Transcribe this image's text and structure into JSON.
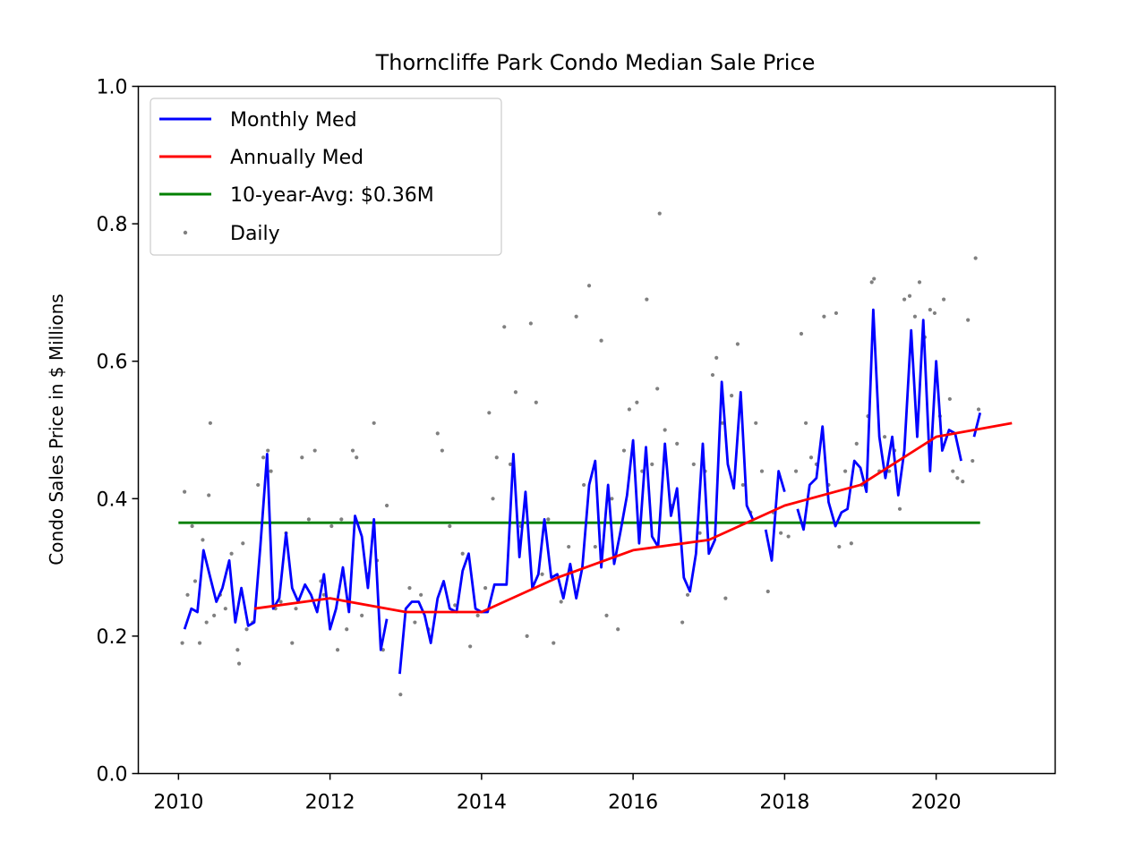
{
  "chart_data": {
    "type": "line",
    "title": "Thorncliffe Park Condo Median Sale Price",
    "xlabel": "",
    "ylabel": "Condo Sales Price in $ Millions",
    "xlim": [
      2009.47,
      2021.57
    ],
    "ylim": [
      0.0,
      1.0
    ],
    "xticks": [
      2010,
      2012,
      2014,
      2016,
      2018,
      2020
    ],
    "yticks": [
      0.0,
      0.2,
      0.4,
      0.6,
      0.8,
      1.0
    ],
    "xtick_labels": [
      "2010",
      "2012",
      "2014",
      "2016",
      "2018",
      "2020"
    ],
    "ytick_labels": [
      "0.0",
      "0.2",
      "0.4",
      "0.6",
      "0.8",
      "1.0"
    ],
    "grid": false,
    "legend_position": "top-left",
    "colors": {
      "monthly": "#0000ff",
      "annual": "#ff0000",
      "avg": "#008000",
      "daily": "#808080"
    },
    "series": [
      {
        "name": "Monthly Med",
        "kind": "line",
        "segments": [
          {
            "x": [
              2010.08,
              2010.17,
              2010.25,
              2010.33,
              2010.42,
              2010.5,
              2010.58,
              2010.67,
              2010.75,
              2010.83,
              2010.92,
              2011.0,
              2011.08,
              2011.17,
              2011.25,
              2011.33,
              2011.42,
              2011.5,
              2011.58,
              2011.67,
              2011.75,
              2011.83,
              2011.92,
              2012.0,
              2012.08,
              2012.17,
              2012.25,
              2012.33,
              2012.42,
              2012.5,
              2012.58,
              2012.67,
              2012.75
            ],
            "y": [
              0.21,
              0.24,
              0.235,
              0.325,
              0.285,
              0.25,
              0.27,
              0.31,
              0.22,
              0.27,
              0.215,
              0.22,
              0.33,
              0.465,
              0.24,
              0.255,
              0.35,
              0.27,
              0.25,
              0.275,
              0.26,
              0.235,
              0.29,
              0.21,
              0.24,
              0.3,
              0.235,
              0.375,
              0.345,
              0.27,
              0.37,
              0.18,
              0.225
            ]
          },
          {
            "x": [
              2012.92,
              2013.0,
              2013.08,
              2013.17,
              2013.25,
              2013.33,
              2013.42,
              2013.5,
              2013.58,
              2013.67,
              2013.75,
              2013.83,
              2013.92,
              2014.0,
              2014.08,
              2014.17,
              2014.25,
              2014.33,
              2014.42,
              2014.5,
              2014.58,
              2014.67,
              2014.75,
              2014.83,
              2014.92,
              2015.0,
              2015.08,
              2015.17,
              2015.25,
              2015.33,
              2015.42,
              2015.5,
              2015.58,
              2015.67,
              2015.75,
              2015.83,
              2015.92,
              2016.0,
              2016.08,
              2016.17,
              2016.25,
              2016.33,
              2016.42,
              2016.5,
              2016.58,
              2016.67,
              2016.75,
              2016.83,
              2016.92,
              2017.0,
              2017.08,
              2017.17,
              2017.25,
              2017.33,
              2017.42,
              2017.5,
              2017.58
            ],
            "y": [
              0.145,
              0.24,
              0.25,
              0.25,
              0.23,
              0.19,
              0.255,
              0.28,
              0.24,
              0.235,
              0.295,
              0.32,
              0.24,
              0.235,
              0.235,
              0.275,
              0.275,
              0.275,
              0.465,
              0.315,
              0.41,
              0.27,
              0.29,
              0.37,
              0.285,
              0.29,
              0.255,
              0.305,
              0.255,
              0.3,
              0.42,
              0.455,
              0.3,
              0.42,
              0.305,
              0.35,
              0.405,
              0.485,
              0.335,
              0.475,
              0.345,
              0.33,
              0.48,
              0.375,
              0.415,
              0.285,
              0.265,
              0.32,
              0.48,
              0.32,
              0.34,
              0.57,
              0.45,
              0.415,
              0.555,
              0.39,
              0.37
            ]
          },
          {
            "x": [
              2017.75,
              2017.83,
              2017.92,
              2018.0
            ],
            "y": [
              0.355,
              0.31,
              0.44,
              0.41
            ]
          },
          {
            "x": [
              2018.17,
              2018.25,
              2018.33,
              2018.42,
              2018.5,
              2018.58,
              2018.67,
              2018.75,
              2018.83,
              2018.92,
              2019.0,
              2019.08,
              2019.17,
              2019.25,
              2019.33,
              2019.42,
              2019.5,
              2019.58,
              2019.67,
              2019.75,
              2019.83,
              2019.92,
              2020.0,
              2020.08,
              2020.17,
              2020.25,
              2020.33
            ],
            "y": [
              0.385,
              0.355,
              0.42,
              0.43,
              0.505,
              0.395,
              0.36,
              0.38,
              0.385,
              0.455,
              0.445,
              0.41,
              0.675,
              0.49,
              0.43,
              0.49,
              0.405,
              0.47,
              0.645,
              0.49,
              0.66,
              0.44,
              0.6,
              0.47,
              0.5,
              0.495,
              0.455
            ]
          },
          {
            "x": [
              2020.5,
              2020.58
            ],
            "y": [
              0.49,
              0.525
            ]
          }
        ]
      },
      {
        "name": "Annually Med",
        "kind": "line",
        "x": [
          2011.0,
          2012.0,
          2013.0,
          2014.0,
          2015.0,
          2016.0,
          2017.0,
          2018.0,
          2019.0,
          2020.0,
          2021.0
        ],
        "y": [
          0.24,
          0.255,
          0.235,
          0.235,
          0.285,
          0.325,
          0.34,
          0.39,
          0.42,
          0.49,
          0.51
        ]
      },
      {
        "name": "10-year-Avg: $0.36M",
        "kind": "hline",
        "x": [
          2010.0,
          2020.58
        ],
        "y": [
          0.365,
          0.365
        ]
      },
      {
        "name": "Daily",
        "kind": "scatter",
        "points": [
          [
            2010.05,
            0.19
          ],
          [
            2010.08,
            0.41
          ],
          [
            2010.12,
            0.26
          ],
          [
            2010.18,
            0.36
          ],
          [
            2010.22,
            0.28
          ],
          [
            2010.28,
            0.19
          ],
          [
            2010.32,
            0.34
          ],
          [
            2010.37,
            0.22
          ],
          [
            2010.4,
            0.405
          ],
          [
            2010.42,
            0.51
          ],
          [
            2010.47,
            0.23
          ],
          [
            2010.55,
            0.26
          ],
          [
            2010.62,
            0.24
          ],
          [
            2010.7,
            0.32
          ],
          [
            2010.78,
            0.18
          ],
          [
            2010.8,
            0.16
          ],
          [
            2010.85,
            0.335
          ],
          [
            2010.9,
            0.21
          ],
          [
            2010.98,
            0.22
          ],
          [
            2011.05,
            0.42
          ],
          [
            2011.12,
            0.46
          ],
          [
            2011.18,
            0.47
          ],
          [
            2011.22,
            0.44
          ],
          [
            2011.28,
            0.24
          ],
          [
            2011.35,
            0.25
          ],
          [
            2011.42,
            0.35
          ],
          [
            2011.5,
            0.19
          ],
          [
            2011.55,
            0.24
          ],
          [
            2011.63,
            0.46
          ],
          [
            2011.72,
            0.37
          ],
          [
            2011.8,
            0.47
          ],
          [
            2011.88,
            0.28
          ],
          [
            2011.92,
            0.26
          ],
          [
            2012.02,
            0.36
          ],
          [
            2012.1,
            0.18
          ],
          [
            2012.15,
            0.37
          ],
          [
            2012.22,
            0.21
          ],
          [
            2012.3,
            0.47
          ],
          [
            2012.35,
            0.46
          ],
          [
            2012.42,
            0.23
          ],
          [
            2012.5,
            0.29
          ],
          [
            2012.58,
            0.51
          ],
          [
            2012.62,
            0.31
          ],
          [
            2012.7,
            0.18
          ],
          [
            2012.75,
            0.39
          ],
          [
            2012.93,
            0.115
          ],
          [
            2013.05,
            0.27
          ],
          [
            2013.12,
            0.22
          ],
          [
            2013.2,
            0.26
          ],
          [
            2013.3,
            0.21
          ],
          [
            2013.42,
            0.495
          ],
          [
            2013.48,
            0.47
          ],
          [
            2013.58,
            0.36
          ],
          [
            2013.65,
            0.245
          ],
          [
            2013.75,
            0.32
          ],
          [
            2013.85,
            0.185
          ],
          [
            2013.95,
            0.23
          ],
          [
            2014.05,
            0.27
          ],
          [
            2014.1,
            0.525
          ],
          [
            2014.15,
            0.4
          ],
          [
            2014.2,
            0.46
          ],
          [
            2014.3,
            0.65
          ],
          [
            2014.38,
            0.45
          ],
          [
            2014.45,
            0.555
          ],
          [
            2014.52,
            0.36
          ],
          [
            2014.6,
            0.2
          ],
          [
            2014.65,
            0.655
          ],
          [
            2014.72,
            0.54
          ],
          [
            2014.8,
            0.29
          ],
          [
            2014.88,
            0.37
          ],
          [
            2014.95,
            0.19
          ],
          [
            2015.05,
            0.25
          ],
          [
            2015.15,
            0.33
          ],
          [
            2015.25,
            0.665
          ],
          [
            2015.35,
            0.42
          ],
          [
            2015.42,
            0.71
          ],
          [
            2015.5,
            0.33
          ],
          [
            2015.58,
            0.63
          ],
          [
            2015.65,
            0.23
          ],
          [
            2015.72,
            0.4
          ],
          [
            2015.8,
            0.21
          ],
          [
            2015.88,
            0.47
          ],
          [
            2015.95,
            0.53
          ],
          [
            2016.05,
            0.54
          ],
          [
            2016.12,
            0.44
          ],
          [
            2016.18,
            0.69
          ],
          [
            2016.25,
            0.45
          ],
          [
            2016.32,
            0.56
          ],
          [
            2016.35,
            0.815
          ],
          [
            2016.42,
            0.5
          ],
          [
            2016.5,
            0.39
          ],
          [
            2016.58,
            0.48
          ],
          [
            2016.65,
            0.22
          ],
          [
            2016.72,
            0.26
          ],
          [
            2016.8,
            0.45
          ],
          [
            2016.88,
            0.35
          ],
          [
            2016.95,
            0.44
          ],
          [
            2017.05,
            0.58
          ],
          [
            2017.1,
            0.605
          ],
          [
            2017.18,
            0.51
          ],
          [
            2017.22,
            0.255
          ],
          [
            2017.3,
            0.55
          ],
          [
            2017.38,
            0.625
          ],
          [
            2017.45,
            0.42
          ],
          [
            2017.55,
            0.38
          ],
          [
            2017.62,
            0.51
          ],
          [
            2017.7,
            0.44
          ],
          [
            2017.78,
            0.265
          ],
          [
            2017.85,
            0.38
          ],
          [
            2017.95,
            0.35
          ],
          [
            2018.05,
            0.345
          ],
          [
            2018.15,
            0.44
          ],
          [
            2018.22,
            0.64
          ],
          [
            2018.28,
            0.51
          ],
          [
            2018.35,
            0.46
          ],
          [
            2018.42,
            0.45
          ],
          [
            2018.52,
            0.665
          ],
          [
            2018.58,
            0.42
          ],
          [
            2018.68,
            0.67
          ],
          [
            2018.72,
            0.33
          ],
          [
            2018.8,
            0.44
          ],
          [
            2018.88,
            0.335
          ],
          [
            2018.95,
            0.48
          ],
          [
            2019.02,
            0.42
          ],
          [
            2019.1,
            0.52
          ],
          [
            2019.15,
            0.715
          ],
          [
            2019.18,
            0.72
          ],
          [
            2019.25,
            0.44
          ],
          [
            2019.32,
            0.49
          ],
          [
            2019.38,
            0.44
          ],
          [
            2019.45,
            0.47
          ],
          [
            2019.52,
            0.385
          ],
          [
            2019.58,
            0.69
          ],
          [
            2019.65,
            0.695
          ],
          [
            2019.72,
            0.665
          ],
          [
            2019.78,
            0.715
          ],
          [
            2019.85,
            0.635
          ],
          [
            2019.92,
            0.675
          ],
          [
            2019.98,
            0.67
          ],
          [
            2020.05,
            0.52
          ],
          [
            2020.1,
            0.69
          ],
          [
            2020.18,
            0.545
          ],
          [
            2020.22,
            0.44
          ],
          [
            2020.28,
            0.43
          ],
          [
            2020.35,
            0.425
          ],
          [
            2020.42,
            0.66
          ],
          [
            2020.48,
            0.455
          ],
          [
            2020.52,
            0.75
          ],
          [
            2020.56,
            0.53
          ]
        ]
      }
    ]
  }
}
